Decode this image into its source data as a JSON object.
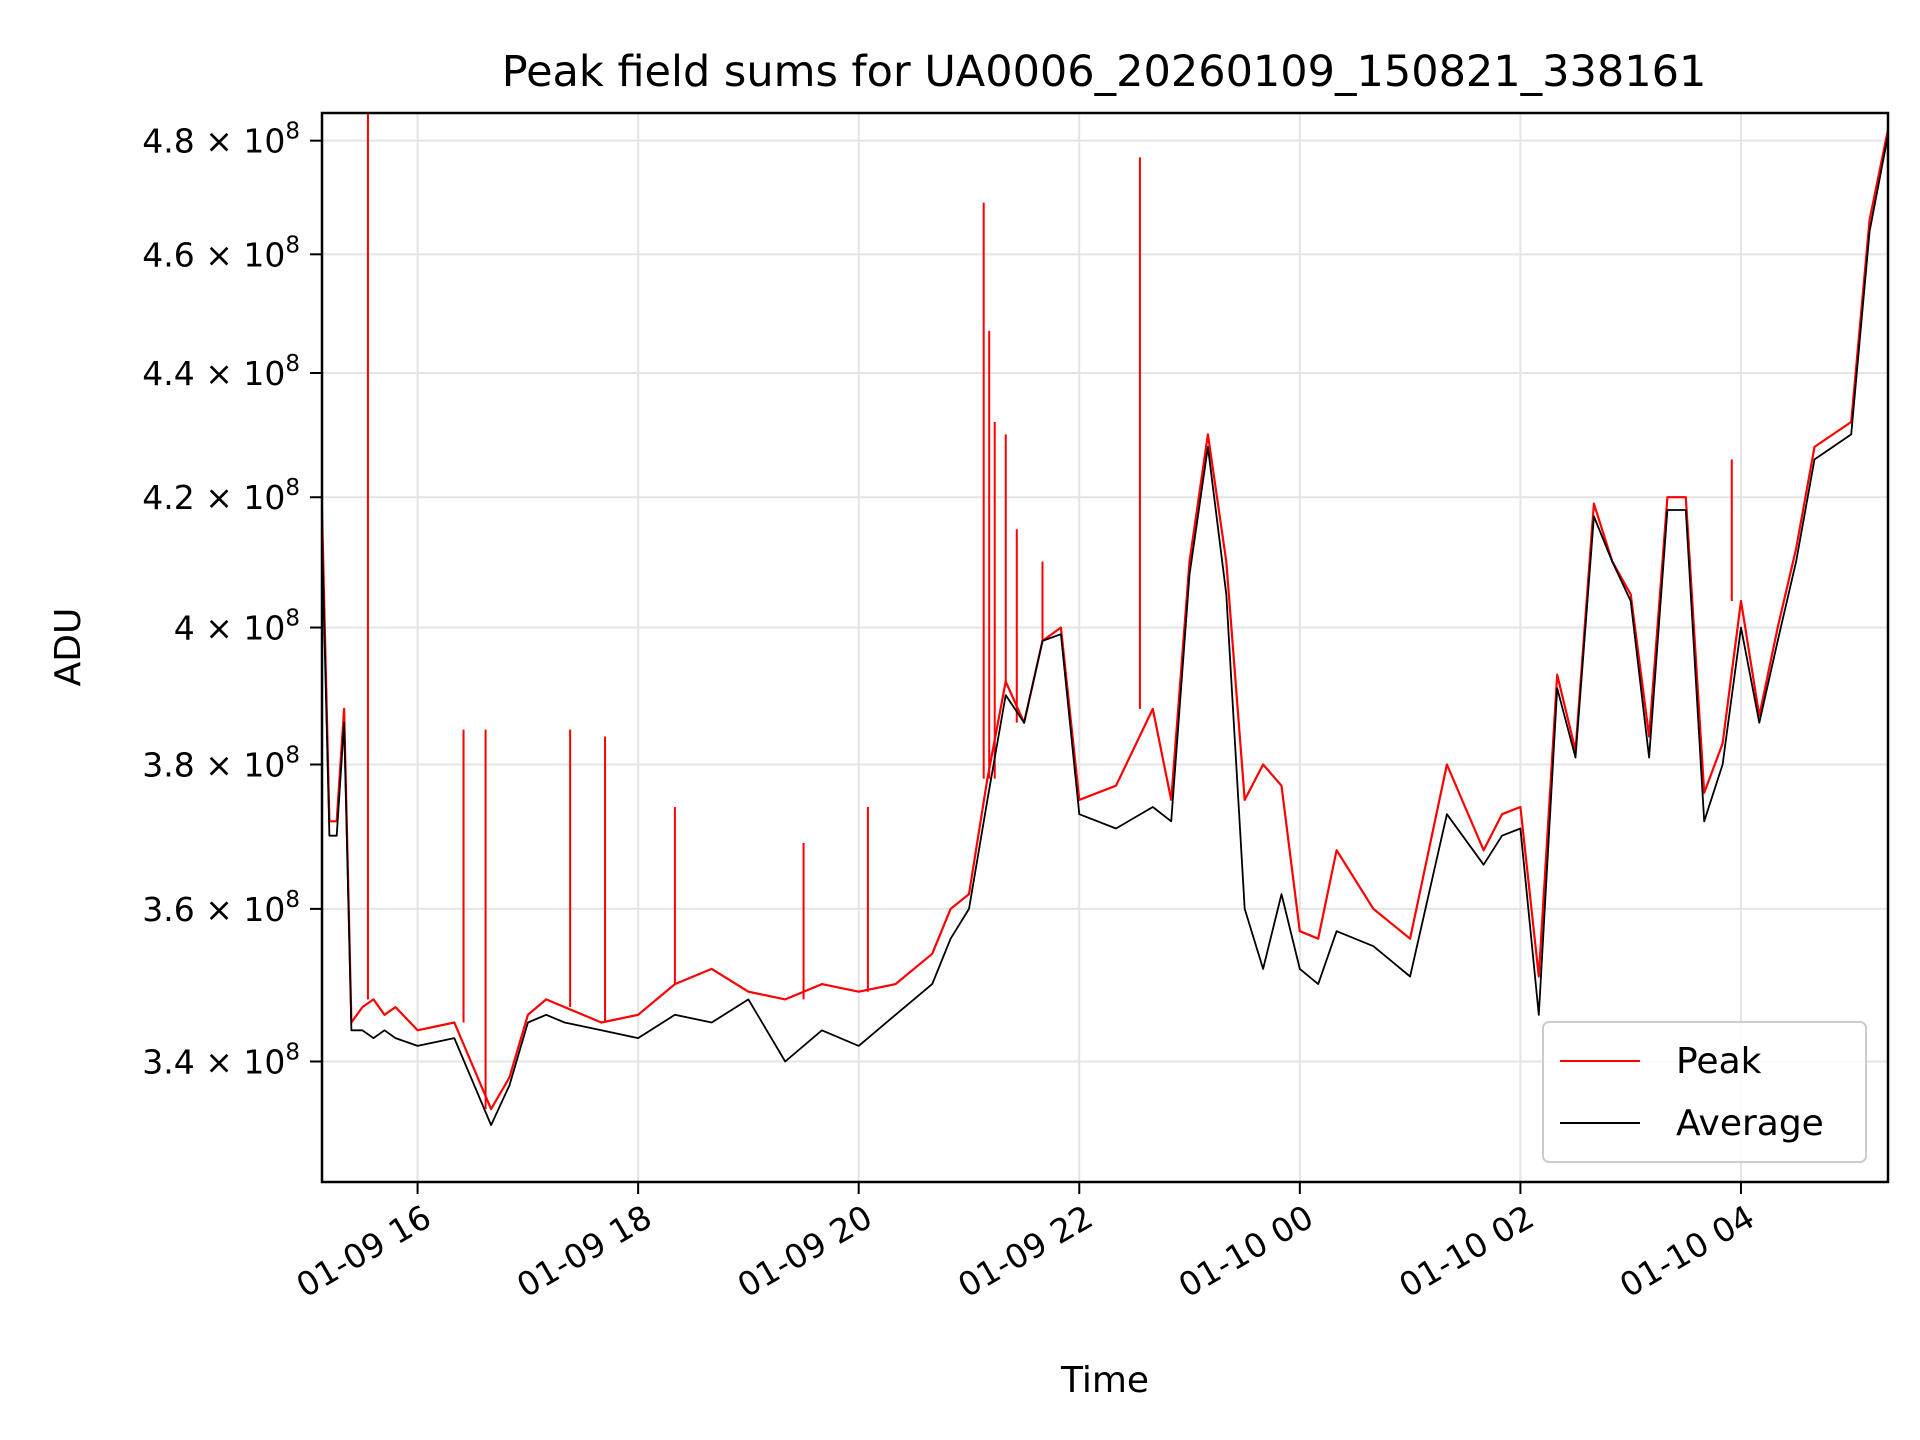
{
  "chart_data": {
    "type": "line",
    "title": "Peak field sums for UA0006_20260109_150821_338161",
    "xlabel": "Time",
    "ylabel": "ADU",
    "x_unit": "hours",
    "xlim": [
      "01-09 15:08",
      "01-10 05:20"
    ],
    "ylim": [
      325000000,
      485000000
    ],
    "yscale": "log",
    "grid": true,
    "legend_position": "lower-right",
    "x_ticks": [
      {
        "label": "01-09 16",
        "value": "01-09 16:00"
      },
      {
        "label": "01-09 18",
        "value": "01-09 18:00"
      },
      {
        "label": "01-09 20",
        "value": "01-09 20:00"
      },
      {
        "label": "01-09 22",
        "value": "01-09 22:00"
      },
      {
        "label": "01-10 00",
        "value": "01-10 00:00"
      },
      {
        "label": "01-10 02",
        "value": "01-10 02:00"
      },
      {
        "label": "01-10 04",
        "value": "01-10 04:00"
      }
    ],
    "y_ticks": [
      {
        "mantissa": "3.4",
        "value": 340000000
      },
      {
        "mantissa": "3.6",
        "value": 360000000
      },
      {
        "mantissa": "3.8",
        "value": 380000000
      },
      {
        "mantissa": "4",
        "value": 400000000
      },
      {
        "mantissa": "4.2",
        "value": 420000000
      },
      {
        "mantissa": "4.4",
        "value": 440000000
      },
      {
        "mantissa": "4.6",
        "value": 460000000
      },
      {
        "mantissa": "4.8",
        "value": 480000000
      }
    ],
    "y_tick_base": "× 10",
    "y_tick_exponent": "8",
    "series": [
      {
        "name": "Peak",
        "color": "#ff0000",
        "x": [
          "01-09 15:08",
          "01-09 15:12",
          "01-09 15:16",
          "01-09 15:20",
          "01-09 15:24",
          "01-09 15:30",
          "01-09 15:36",
          "01-09 15:42",
          "01-09 15:48",
          "01-09 16:00",
          "01-09 16:20",
          "01-09 16:40",
          "01-09 16:50",
          "01-09 17:00",
          "01-09 17:10",
          "01-09 17:20",
          "01-09 17:40",
          "01-09 18:00",
          "01-09 18:20",
          "01-09 18:40",
          "01-09 19:00",
          "01-09 19:20",
          "01-09 19:40",
          "01-09 20:00",
          "01-09 20:20",
          "01-09 20:40",
          "01-09 20:50",
          "01-09 21:00",
          "01-09 21:10",
          "01-09 21:20",
          "01-09 21:30",
          "01-09 21:40",
          "01-09 21:50",
          "01-09 22:00",
          "01-09 22:20",
          "01-09 22:40",
          "01-09 22:50",
          "01-09 23:00",
          "01-09 23:10",
          "01-09 23:20",
          "01-09 23:30",
          "01-09 23:40",
          "01-09 23:50",
          "01-10 00:00",
          "01-10 00:10",
          "01-10 00:20",
          "01-10 00:40",
          "01-10 01:00",
          "01-10 01:20",
          "01-10 01:40",
          "01-10 01:50",
          "01-10 02:00",
          "01-10 02:10",
          "01-10 02:20",
          "01-10 02:30",
          "01-10 02:40",
          "01-10 02:50",
          "01-10 03:00",
          "01-10 03:10",
          "01-10 03:20",
          "01-10 03:30",
          "01-10 03:40",
          "01-10 03:50",
          "01-10 04:00",
          "01-10 04:10",
          "01-10 04:20",
          "01-10 04:30",
          "01-10 04:40",
          "01-10 04:50",
          "01-10 05:00",
          "01-10 05:10",
          "01-10 05:20"
        ],
        "values": [
          418000000,
          372000000,
          372000000,
          388000000,
          345000000,
          347000000,
          348000000,
          346000000,
          347000000,
          344000000,
          345000000,
          334000000,
          338000000,
          346000000,
          348000000,
          347000000,
          345000000,
          346000000,
          350000000,
          352000000,
          349000000,
          348000000,
          350000000,
          349000000,
          350000000,
          354000000,
          360000000,
          362000000,
          378000000,
          392000000,
          386000000,
          398000000,
          400000000,
          375000000,
          377000000,
          388000000,
          375000000,
          410000000,
          430000000,
          410000000,
          375000000,
          380000000,
          377000000,
          357000000,
          356000000,
          368000000,
          360000000,
          356000000,
          380000000,
          368000000,
          373000000,
          374000000,
          351000000,
          393000000,
          382000000,
          419000000,
          410000000,
          405000000,
          384000000,
          420000000,
          420000000,
          376000000,
          383000000,
          404000000,
          387000000,
          400000000,
          412000000,
          428000000,
          430000000,
          432000000,
          466000000,
          482000000
        ],
        "spikes": [
          {
            "x": "01-09 15:33",
            "value": 485000000
          },
          {
            "x": "01-09 16:25",
            "value": 385000000
          },
          {
            "x": "01-09 16:37",
            "value": 385000000
          },
          {
            "x": "01-09 17:23",
            "value": 385000000
          },
          {
            "x": "01-09 17:42",
            "value": 384000000
          },
          {
            "x": "01-09 18:20",
            "value": 374000000
          },
          {
            "x": "01-09 19:30",
            "value": 369000000
          },
          {
            "x": "01-09 20:05",
            "value": 374000000
          },
          {
            "x": "01-09 21:08",
            "value": 469000000
          },
          {
            "x": "01-09 21:11",
            "value": 447000000
          },
          {
            "x": "01-09 21:14",
            "value": 432000000
          },
          {
            "x": "01-09 21:20",
            "value": 430000000
          },
          {
            "x": "01-09 21:26",
            "value": 415000000
          },
          {
            "x": "01-09 21:40",
            "value": 410000000
          },
          {
            "x": "01-09 22:33",
            "value": 477000000
          },
          {
            "x": "01-10 03:55",
            "value": 426000000
          }
        ]
      },
      {
        "name": "Average",
        "color": "#000000",
        "x": [
          "01-09 15:08",
          "01-09 15:12",
          "01-09 15:16",
          "01-09 15:20",
          "01-09 15:24",
          "01-09 15:30",
          "01-09 15:36",
          "01-09 15:42",
          "01-09 15:48",
          "01-09 16:00",
          "01-09 16:20",
          "01-09 16:40",
          "01-09 16:50",
          "01-09 17:00",
          "01-09 17:10",
          "01-09 17:20",
          "01-09 17:40",
          "01-09 18:00",
          "01-09 18:20",
          "01-09 18:40",
          "01-09 19:00",
          "01-09 19:20",
          "01-09 19:40",
          "01-09 20:00",
          "01-09 20:20",
          "01-09 20:40",
          "01-09 20:50",
          "01-09 21:00",
          "01-09 21:10",
          "01-09 21:20",
          "01-09 21:30",
          "01-09 21:40",
          "01-09 21:50",
          "01-09 22:00",
          "01-09 22:20",
          "01-09 22:40",
          "01-09 22:50",
          "01-09 23:00",
          "01-09 23:10",
          "01-09 23:20",
          "01-09 23:30",
          "01-09 23:40",
          "01-09 23:50",
          "01-10 00:00",
          "01-10 00:10",
          "01-10 00:20",
          "01-10 00:40",
          "01-10 01:00",
          "01-10 01:20",
          "01-10 01:40",
          "01-10 01:50",
          "01-10 02:00",
          "01-10 02:10",
          "01-10 02:20",
          "01-10 02:30",
          "01-10 02:40",
          "01-10 02:50",
          "01-10 03:00",
          "01-10 03:10",
          "01-10 03:20",
          "01-10 03:30",
          "01-10 03:40",
          "01-10 03:50",
          "01-10 04:00",
          "01-10 04:10",
          "01-10 04:20",
          "01-10 04:30",
          "01-10 04:40",
          "01-10 04:50",
          "01-10 05:00",
          "01-10 05:10",
          "01-10 05:20"
        ],
        "values": [
          414000000,
          370000000,
          370000000,
          386000000,
          344000000,
          344000000,
          343000000,
          344000000,
          343000000,
          342000000,
          343000000,
          332000000,
          337000000,
          345000000,
          346000000,
          345000000,
          344000000,
          343000000,
          346000000,
          345000000,
          348000000,
          340000000,
          344000000,
          342000000,
          346000000,
          350000000,
          356000000,
          360000000,
          375000000,
          390000000,
          386000000,
          398000000,
          399000000,
          373000000,
          371000000,
          374000000,
          372000000,
          408000000,
          428000000,
          405000000,
          360000000,
          352000000,
          362000000,
          352000000,
          350000000,
          357000000,
          355000000,
          351000000,
          373000000,
          366000000,
          370000000,
          371000000,
          346000000,
          391000000,
          381000000,
          417000000,
          410000000,
          404000000,
          381000000,
          418000000,
          418000000,
          372000000,
          380000000,
          400000000,
          386000000,
          398000000,
          410000000,
          426000000,
          428000000,
          430000000,
          464000000,
          481000000
        ]
      }
    ]
  }
}
